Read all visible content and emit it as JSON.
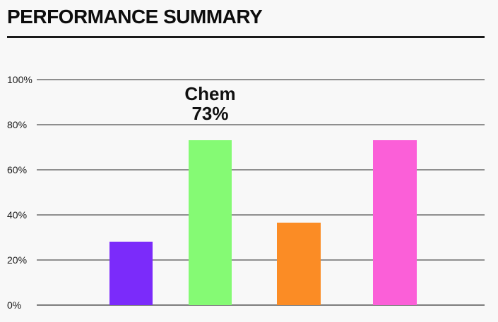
{
  "header": {
    "title": "PERFORMANCE SUMMARY"
  },
  "annotation": {
    "line1": "Chem",
    "line2": "73%"
  },
  "colors": {
    "background": "#f8f8f8",
    "title_text": "#0d0d0d",
    "title_rule": "#1a1a1a",
    "gridline": "#8f8f8f",
    "axis_label_text": "#1a1a1a",
    "annotation_text": "#111111"
  },
  "chart_data": {
    "type": "bar",
    "title": "PERFORMANCE SUMMARY",
    "categories": [
      "",
      "Chem",
      "",
      ""
    ],
    "values": [
      28,
      73,
      36.5,
      73
    ],
    "bar_colors": [
      "#7b2bfa",
      "#85fa74",
      "#fb8c25",
      "#fb5fd8"
    ],
    "xlabel": "",
    "ylabel": "",
    "ylim": [
      0,
      100
    ],
    "yticks": [
      0,
      20,
      40,
      60,
      80,
      100
    ],
    "ytick_labels": [
      "0%",
      "20%",
      "40%",
      "60%",
      "80%",
      "100%"
    ],
    "grid": true,
    "legend": false,
    "annotation": {
      "text": "Chem 73%",
      "target_index": 1
    }
  }
}
